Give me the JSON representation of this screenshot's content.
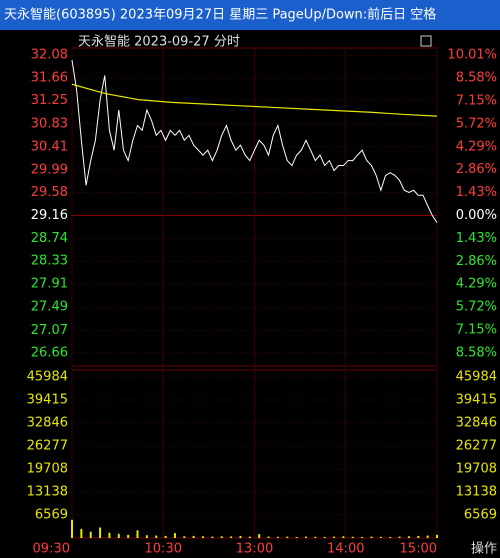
{
  "title_bar": {
    "text": "天永智能(603895) 2023年09月27日 星期三 PageUp/Down:前后日 空格"
  },
  "chart_data": {
    "type": "intraday",
    "header": "天永智能  2023-09-27 分时",
    "ylim": [
      26.42,
      32.21
    ],
    "yticks": [
      32.08,
      31.66,
      31.25,
      30.83,
      30.41,
      29.99,
      29.58,
      29.16,
      28.74,
      28.33,
      27.91,
      27.49,
      27.07,
      26.66
    ],
    "prev_close": 29.16,
    "y2lim": [
      -9.4,
      10.46
    ],
    "y2ticks": [
      {
        "value": 10.01,
        "label": "10.01%"
      },
      {
        "value": 8.58,
        "label": "8.58%"
      },
      {
        "value": 7.15,
        "label": "7.15%"
      },
      {
        "value": 5.72,
        "label": "5.72%"
      },
      {
        "value": 4.29,
        "label": "4.29%"
      },
      {
        "value": 2.86,
        "label": "2.86%"
      },
      {
        "value": 1.43,
        "label": "1.43%"
      },
      {
        "value": 0,
        "label": "0.00%"
      },
      {
        "value": -1.43,
        "label": "1.43%"
      },
      {
        "value": -2.86,
        "label": "2.86%"
      },
      {
        "value": -4.29,
        "label": "4.29%"
      },
      {
        "value": -5.72,
        "label": "5.72%"
      },
      {
        "value": -7.15,
        "label": "7.15%"
      },
      {
        "value": -8.58,
        "label": "8.58%"
      }
    ],
    "xlim": [
      0,
      240
    ],
    "xticks": [
      {
        "value": 0,
        "label": "09:30"
      },
      {
        "value": 60,
        "label": "10:30"
      },
      {
        "value": 120,
        "label": "13:00"
      },
      {
        "value": 180,
        "label": "14:00"
      },
      {
        "value": 240,
        "label": "15:00"
      }
    ],
    "series": [
      {
        "name": "price",
        "color": "#ffffff",
        "values": [
          31.99,
          31.44,
          30.53,
          29.71,
          30.16,
          30.53,
          31.26,
          31.71,
          30.71,
          30.35,
          31.08,
          30.35,
          30.16,
          30.53,
          30.8,
          30.71,
          31.08,
          30.89,
          30.62,
          30.71,
          30.53,
          30.71,
          30.62,
          30.71,
          30.53,
          30.62,
          30.44,
          30.35,
          30.26,
          30.35,
          30.16,
          30.35,
          30.62,
          30.8,
          30.53,
          30.35,
          30.44,
          30.26,
          30.16,
          30.35,
          30.53,
          30.44,
          30.26,
          30.62,
          30.8,
          30.44,
          30.16,
          30.07,
          30.26,
          30.35,
          30.53,
          30.35,
          30.16,
          30.26,
          30.07,
          30.16,
          29.98,
          30.07,
          30.07,
          30.16,
          30.16,
          30.26,
          30.35,
          30.16,
          30.07,
          29.89,
          29.62,
          29.89,
          29.94,
          29.89,
          29.8,
          29.62,
          29.58,
          29.62,
          29.53,
          29.53,
          29.34,
          29.16,
          29.03
        ]
      },
      {
        "name": "average",
        "color": "#e6e600",
        "values": [
          31.55,
          31.38,
          31.27,
          31.22,
          31.19,
          31.16,
          31.13,
          31.1,
          31.07,
          31.04,
          31.0,
          30.97
        ]
      }
    ],
    "volume": {
      "color": "#e6e600",
      "ylim": [
        0,
        47983
      ],
      "yticks": [
        45984,
        39415,
        32846,
        26277,
        19708,
        13138,
        6569
      ],
      "values": [
        5200,
        2600,
        1800,
        3000,
        1500,
        1200,
        900,
        2200,
        800,
        700,
        600,
        1400,
        500,
        600,
        500,
        400,
        500,
        450,
        600,
        400,
        1100,
        400,
        350,
        400,
        300,
        400,
        350,
        300,
        400,
        500,
        350,
        300,
        400,
        350,
        300,
        400,
        500,
        600,
        700,
        900
      ]
    }
  },
  "footer": {
    "button": "操作"
  }
}
